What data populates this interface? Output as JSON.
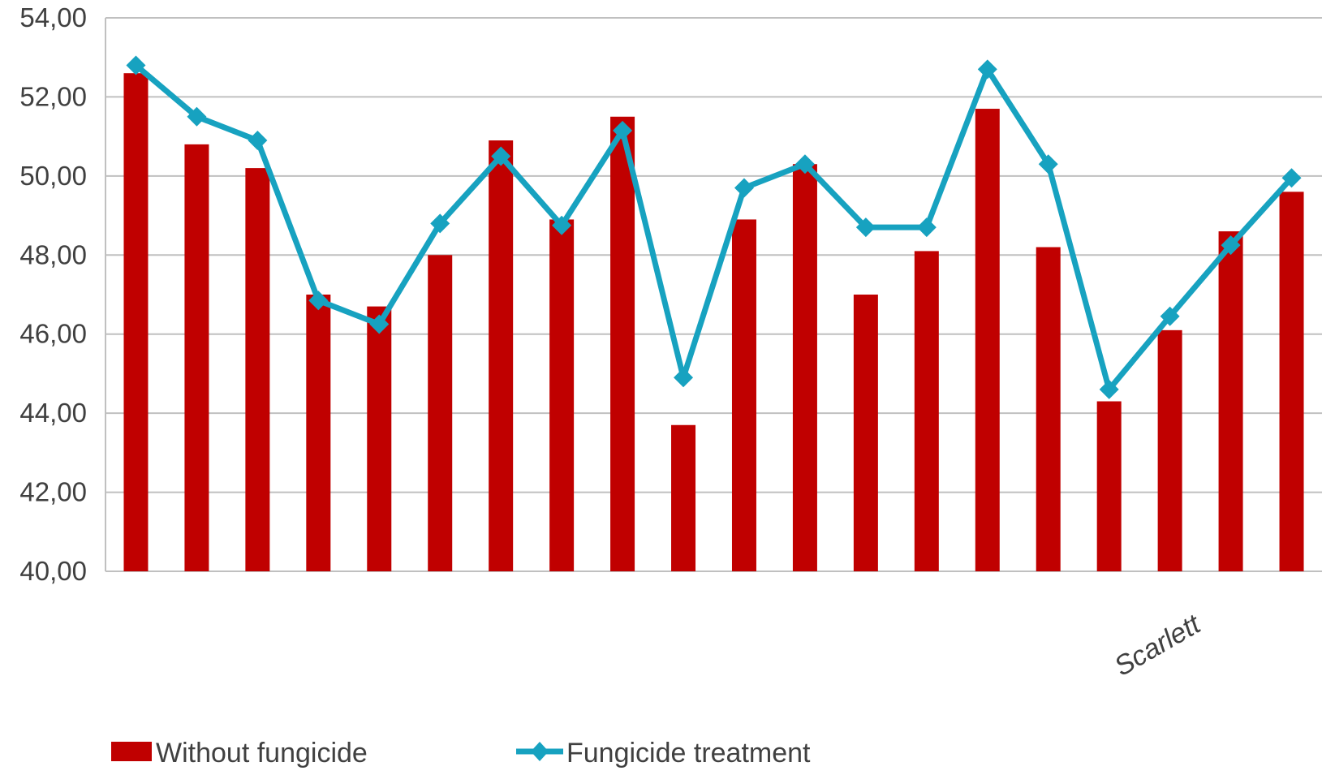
{
  "chart_data": {
    "type": "bar",
    "categories": [
      "",
      "",
      "",
      "",
      "",
      "",
      "",
      "",
      "",
      "",
      "",
      "",
      "",
      "",
      "",
      "",
      "",
      "Scarlett",
      "",
      ""
    ],
    "series": [
      {
        "name": "Without fungicide",
        "type": "bar",
        "color": "#c00000",
        "values": [
          52.6,
          50.8,
          50.2,
          47.0,
          46.7,
          48.0,
          50.9,
          48.9,
          51.5,
          43.7,
          48.9,
          50.3,
          47.0,
          48.1,
          51.7,
          48.2,
          44.3,
          46.1,
          48.6,
          49.6
        ]
      },
      {
        "name": "Fungicide treatment",
        "type": "line",
        "marker": "diamond",
        "color": "#17a2c0",
        "values": [
          52.8,
          51.5,
          50.9,
          46.85,
          46.25,
          48.8,
          50.5,
          48.75,
          51.15,
          44.9,
          49.7,
          50.3,
          48.7,
          48.7,
          52.7,
          50.3,
          44.6,
          46.45,
          48.25,
          49.95
        ]
      }
    ],
    "y_ticks": [
      "40,00",
      "42,00",
      "44,00",
      "46,00",
      "48,00",
      "50,00",
      "52,00",
      "54,00"
    ],
    "ylim": [
      40,
      54
    ],
    "grid": true,
    "legend_position": "bottom-left"
  }
}
